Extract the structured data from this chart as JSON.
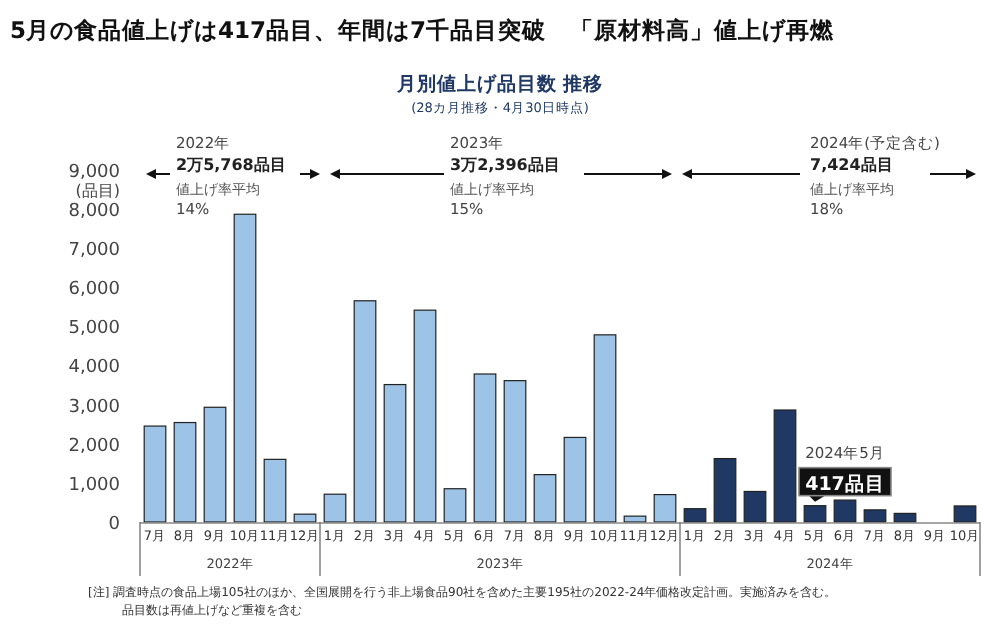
{
  "chart_data": {
    "type": "bar",
    "title": "5月の食品値上げは417品目、年間は7千品目突破　「原材料高」値上げ再燃",
    "subtitle": "月別値上げ品目数 推移",
    "ylabel": "(品目)",
    "categories": [
      "7月",
      "8月",
      "9月",
      "10月",
      "11月",
      "12月",
      "1月",
      "2月",
      "3月",
      "4月",
      "5月",
      "6月",
      "7月",
      "8月",
      "9月",
      "10月",
      "11月",
      "12月",
      "1月",
      "2月",
      "3月",
      "4月",
      "5月",
      "6月",
      "7月",
      "8月",
      "9月",
      "10月"
    ],
    "values": [
      2450,
      2540,
      2930,
      7860,
      1600,
      200,
      710,
      5650,
      3510,
      5410,
      850,
      3780,
      3610,
      1210,
      2160,
      4780,
      150,
      700,
      340,
      1620,
      780,
      2860,
      417,
      560,
      310,
      220,
      0,
      410
    ],
    "colors": [
      "#9dc3e6",
      "#9dc3e6",
      "#9dc3e6",
      "#9dc3e6",
      "#9dc3e6",
      "#9dc3e6",
      "#9dc3e6",
      "#9dc3e6",
      "#9dc3e6",
      "#9dc3e6",
      "#9dc3e6",
      "#9dc3e6",
      "#9dc3e6",
      "#9dc3e6",
      "#9dc3e6",
      "#9dc3e6",
      "#9dc3e6",
      "#9dc3e6",
      "#1f3864",
      "#1f3864",
      "#1f3864",
      "#1f3864",
      "#1f3864",
      "#1f3864",
      "#1f3864",
      "#1f3864",
      "#1f3864",
      "#1f3864"
    ],
    "value_labels": [
      null,
      null,
      null,
      null,
      null,
      null,
      null,
      null,
      null,
      null,
      null,
      null,
      null,
      null,
      null,
      null,
      null,
      null,
      null,
      null,
      null,
      null,
      "417品目",
      null,
      null,
      null,
      null,
      null
    ],
    "ylim": [
      0,
      9000
    ],
    "yticks": [
      {
        "value": 0,
        "label": "0"
      },
      {
        "value": 1000,
        "label": "1,000"
      },
      {
        "value": 2000,
        "label": "2,000"
      },
      {
        "value": 3000,
        "label": "3,000"
      },
      {
        "value": 4000,
        "label": "4,000"
      },
      {
        "value": 5000,
        "label": "5,000"
      },
      {
        "value": 6000,
        "label": "6,000"
      },
      {
        "value": 7000,
        "label": "7,000"
      },
      {
        "value": 8000,
        "label": "8,000"
      },
      {
        "value": 9000,
        "label": "9,000"
      }
    ],
    "grid": false,
    "annotations": [
      "(28カ月推移・4月30日時点)",
      "2022年",
      "2万5,768品目",
      "値上げ率平均",
      "14%",
      "2023年",
      "3万2,396品目",
      "値上げ率平均",
      "15%",
      "2024年(予定含む)",
      "7,424品目",
      "値上げ率平均",
      "18%",
      "2024年5月",
      "2022年",
      "2023年",
      "2024年",
      "[注] 調査時点の食品上場105社のほか、全国展開を行う非上場食品90社を含めた主要195社の2022-24年価格改定計画。実施済みを含む。",
      "品目数は再値上げなど重複を含む"
    ]
  }
}
